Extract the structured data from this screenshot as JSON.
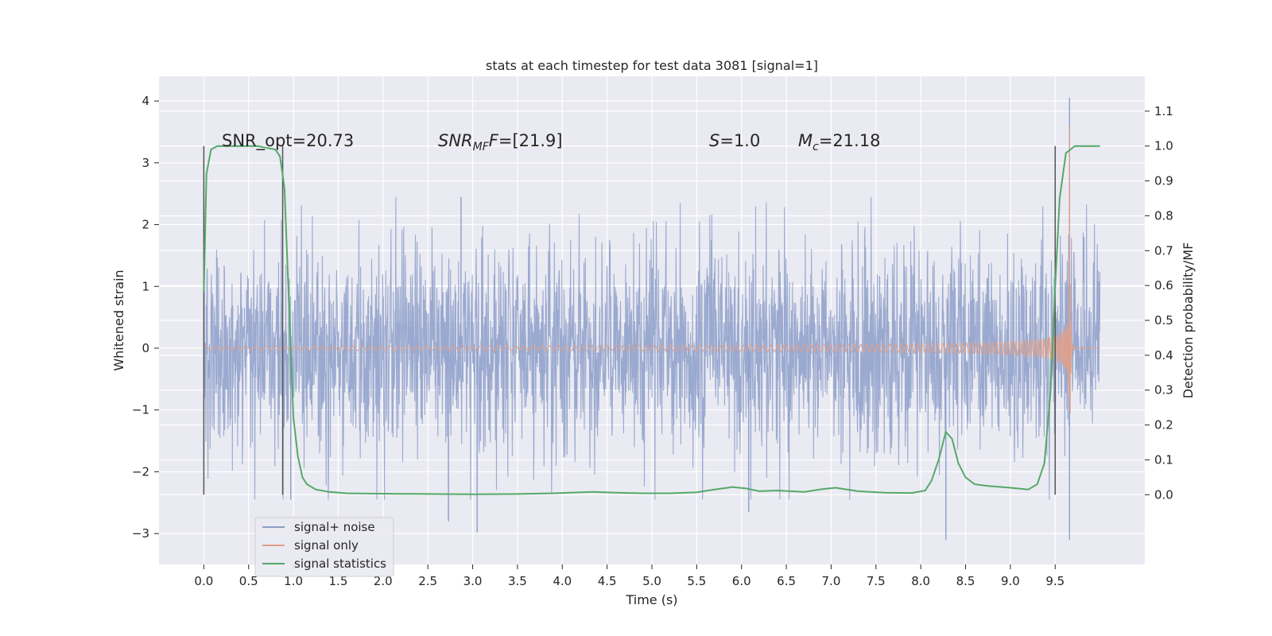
{
  "chart_data": {
    "type": "line",
    "title": "stats at each timestep for test data 3081 [signal=1]",
    "xlabel": "Time (s)",
    "ylabel": "Whitened strain",
    "ylabel_right": "Detection probability/MF",
    "xlim": [
      -0.5,
      10.5
    ],
    "ylim": [
      -3.5,
      4.4
    ],
    "ylim_right": [
      -0.2,
      1.2
    ],
    "x_ticks": [
      0.0,
      0.5,
      1.0,
      1.5,
      2.0,
      2.5,
      3.0,
      3.5,
      4.0,
      4.5,
      5.0,
      5.5,
      6.0,
      6.5,
      7.0,
      7.5,
      8.0,
      8.5,
      9.0,
      9.5
    ],
    "x_tick_labels": [
      "0.0",
      "0.5",
      "1.0",
      "1.5",
      "2.0",
      "2.5",
      "3.0",
      "3.5",
      "4.0",
      "4.5",
      "5.0",
      "5.5",
      "6.0",
      "6.5",
      "7.0",
      "7.5",
      "8.0",
      "8.5",
      "9.0",
      "9.5"
    ],
    "y_ticks": [
      -3,
      -2,
      -1,
      0,
      1,
      2,
      3,
      4
    ],
    "y_tick_labels": [
      "−3",
      "−2",
      "−1",
      "0",
      "1",
      "2",
      "3",
      "4"
    ],
    "y_ticks_right": [
      0.0,
      0.1,
      0.2,
      0.3,
      0.4,
      0.5,
      0.6,
      0.7,
      0.8,
      0.9,
      1.0,
      1.1
    ],
    "y_tick_labels_right": [
      "0.0",
      "0.1",
      "0.2",
      "0.3",
      "0.4",
      "0.5",
      "0.6",
      "0.7",
      "0.8",
      "0.9",
      "1.0",
      "1.1"
    ],
    "grid": true,
    "legend_placement": "lower-left",
    "annotations": {
      "snr_opt": "SNR_opt=20.73",
      "snr_mf_var": "SNR",
      "snr_mf_sub": "MF",
      "snr_mf_value": "=[21.9]",
      "s_var": "S",
      "s_value": "=1.0",
      "mc_var": "M",
      "mc_sub": "c",
      "mc_value": "=21.18"
    },
    "vertical_markers": [
      {
        "x": 0.0,
        "y_range": [
          -0.0,
          1.0
        ]
      },
      {
        "x": 0.88,
        "y_range": [
          -0.0,
          1.0
        ]
      },
      {
        "x": 9.5,
        "y_range": [
          -0.0,
          1.0
        ]
      }
    ],
    "series": [
      {
        "name": "signal+ noise",
        "color": "#8c9ec9",
        "kind": "noise",
        "x_range": [
          0.0,
          10.0
        ],
        "amplitude_envelope": [
          1.0,
          1.0,
          1.0
        ],
        "spike_peaks": [
          {
            "x": 2.73,
            "y": -2.8
          },
          {
            "x": 3.05,
            "y": -2.98
          },
          {
            "x": 8.28,
            "y": -3.1
          },
          {
            "x": 9.66,
            "y": 4.05
          },
          {
            "x": 9.66,
            "y": -3.1
          },
          {
            "x": 0.97,
            "y": -2.45
          },
          {
            "x": 6.08,
            "y": -2.65
          },
          {
            "x": 2.87,
            "y": 2.45
          }
        ]
      },
      {
        "name": "signal only",
        "color": "#e0a08a",
        "kind": "chirp",
        "x_range": [
          0.0,
          10.0
        ],
        "merger_time": 9.66,
        "peak_amplitude": 3.6
      },
      {
        "name": "signal statistics",
        "color": "#55a868",
        "axis": "right",
        "x": [
          0.0,
          0.03,
          0.08,
          0.15,
          0.25,
          0.4,
          0.6,
          0.8,
          0.85,
          0.9,
          0.95,
          1.0,
          1.05,
          1.1,
          1.15,
          1.25,
          1.4,
          1.6,
          2.0,
          2.5,
          3.0,
          3.5,
          3.9,
          4.2,
          4.35,
          4.6,
          4.9,
          5.2,
          5.5,
          5.7,
          5.9,
          6.05,
          6.2,
          6.4,
          6.7,
          6.9,
          7.05,
          7.3,
          7.6,
          7.9,
          8.05,
          8.12,
          8.2,
          8.28,
          8.35,
          8.42,
          8.5,
          8.6,
          8.75,
          9.0,
          9.2,
          9.3,
          9.38,
          9.45,
          9.5,
          9.55,
          9.62,
          9.72,
          9.85,
          10.0
        ],
        "y": [
          0.58,
          0.92,
          0.99,
          1.0,
          1.0,
          1.0,
          1.0,
          0.99,
          0.97,
          0.88,
          0.55,
          0.22,
          0.11,
          0.05,
          0.03,
          0.015,
          0.008,
          0.004,
          0.003,
          0.002,
          0.001,
          0.002,
          0.004,
          0.007,
          0.008,
          0.006,
          0.004,
          0.004,
          0.007,
          0.015,
          0.022,
          0.018,
          0.01,
          0.012,
          0.008,
          0.016,
          0.02,
          0.01,
          0.006,
          0.005,
          0.012,
          0.04,
          0.1,
          0.18,
          0.16,
          0.09,
          0.05,
          0.03,
          0.025,
          0.02,
          0.015,
          0.03,
          0.09,
          0.3,
          0.6,
          0.85,
          0.98,
          1.0,
          1.0,
          1.0
        ]
      }
    ]
  }
}
